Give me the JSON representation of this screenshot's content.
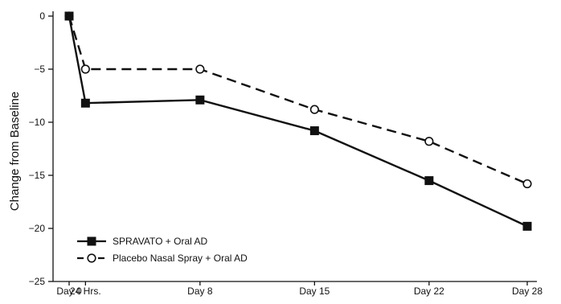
{
  "chart_data": {
    "type": "line",
    "title": "",
    "xlabel": "",
    "ylabel": "Change from Baseline",
    "categories": [
      "Day 0",
      "24 Hrs.",
      "Day 8",
      "Day 15",
      "Day 22",
      "Day 28"
    ],
    "x_days": [
      0,
      1,
      8,
      15,
      22,
      28
    ],
    "ylim": [
      -25,
      0
    ],
    "yticks": [
      0,
      -5,
      -10,
      -15,
      -20,
      -25
    ],
    "grid": false,
    "legend_position": "bottom-left",
    "series": [
      {
        "name": "SPRAVATO + Oral AD",
        "values": [
          0,
          -8.2,
          -7.9,
          -10.8,
          -15.5,
          -19.8
        ],
        "line_style": "solid",
        "marker": "filled-square",
        "color": "#111111"
      },
      {
        "name": "Placebo Nasal Spray + Oral AD",
        "values": [
          0,
          -5.0,
          -5.0,
          -8.8,
          -11.8,
          -15.8
        ],
        "line_style": "dashed",
        "marker": "open-circle",
        "color": "#111111"
      }
    ]
  }
}
